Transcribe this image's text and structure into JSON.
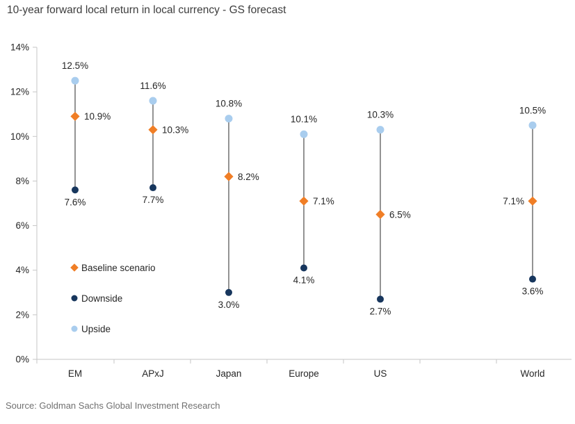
{
  "title": "10-year forward local return in local currency - GS forecast",
  "source": "Source: Goldman Sachs Global Investment Research",
  "colors": {
    "baseline": "#F07E26",
    "downside": "#17365D",
    "upside": "#A9CDEE",
    "range_line": "#595959",
    "axis": "#C6C6C6",
    "text": "#262626",
    "title_text": "#3D3D3D",
    "source_text": "#707070"
  },
  "chart_data": {
    "type": "scatter",
    "variant": "floating-dot-range",
    "title": "10-year forward local return in local currency - GS forecast",
    "categories": [
      "EM",
      "APxJ",
      "Japan",
      "Europe",
      "US",
      "World"
    ],
    "series": [
      {
        "name": "Baseline scenario",
        "marker": "diamond",
        "color_key": "baseline",
        "values": [
          10.9,
          10.3,
          8.2,
          7.1,
          6.5,
          7.1
        ],
        "labels": [
          "10.9%",
          "10.3%",
          "8.2%",
          "7.1%",
          "6.5%",
          "7.1%"
        ],
        "label_side": [
          "right",
          "right",
          "right",
          "right",
          "right",
          "left"
        ]
      },
      {
        "name": "Downside",
        "marker": "circle",
        "color_key": "downside",
        "values": [
          7.6,
          7.7,
          3.0,
          4.1,
          2.7,
          3.6
        ],
        "labels": [
          "7.6%",
          "7.7%",
          "3.0%",
          "4.1%",
          "2.7%",
          "3.6%"
        ],
        "label_side": [
          "below",
          "below",
          "below",
          "below",
          "below",
          "below"
        ]
      },
      {
        "name": "Upside",
        "marker": "circle",
        "color_key": "upside",
        "values": [
          12.5,
          11.6,
          10.8,
          10.1,
          10.3,
          10.5
        ],
        "labels": [
          "12.5%",
          "11.6%",
          "10.8%",
          "10.1%",
          "10.3%",
          "10.5%"
        ],
        "label_side": [
          "above",
          "above",
          "above",
          "above",
          "above",
          "above"
        ]
      }
    ],
    "ylim": [
      0,
      14
    ],
    "y_tick_labels": [
      "0%",
      "2%",
      "4%",
      "6%",
      "8%",
      "10%",
      "12%",
      "14%"
    ],
    "grid": false,
    "legend_position": "inside-bottom-left",
    "legend": [
      {
        "label": "Baseline scenario",
        "marker": "diamond",
        "color_key": "baseline"
      },
      {
        "label": "Downside",
        "marker": "circle",
        "color_key": "downside"
      },
      {
        "label": "Upside",
        "marker": "circle",
        "color_key": "upside"
      }
    ]
  }
}
